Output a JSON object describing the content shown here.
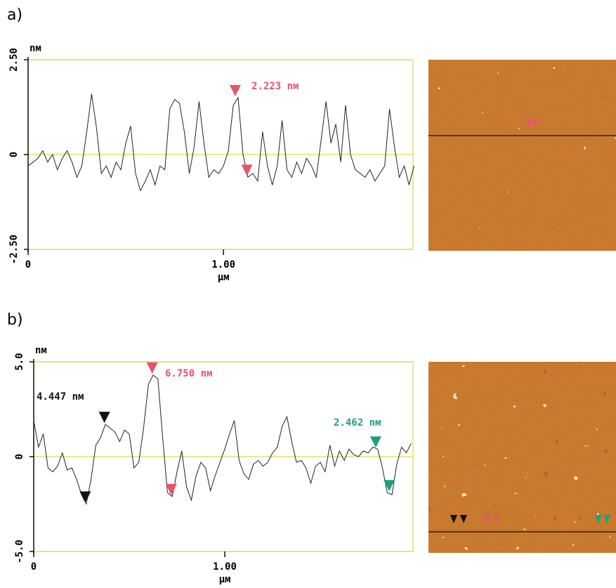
{
  "chart_data": [
    {
      "type": "line",
      "panel": "a)",
      "y_label": "nм",
      "x_label": "μм",
      "color": "#222222",
      "frame_color": "#e6df6a",
      "grid": true,
      "xlim": [
        0,
        1.97
      ],
      "xticks": [
        0,
        {
          "value": 1,
          "label": "1.00"
        }
      ],
      "ylim": [
        -2.5,
        2.5
      ],
      "yticks": [
        {
          "value": 2.5,
          "label": "2.50"
        },
        0,
        {
          "value": -2.5,
          "label": "-2.50"
        }
      ],
      "x": [
        0,
        0.025,
        0.05,
        0.075,
        0.1,
        0.125,
        0.15,
        0.175,
        0.2,
        0.225,
        0.25,
        0.275,
        0.3,
        0.325,
        0.35,
        0.375,
        0.4,
        0.425,
        0.45,
        0.475,
        0.5,
        0.525,
        0.55,
        0.575,
        0.6,
        0.625,
        0.65,
        0.675,
        0.7,
        0.725,
        0.75,
        0.775,
        0.8,
        0.825,
        0.85,
        0.875,
        0.9,
        0.925,
        0.95,
        0.975,
        1.0,
        1.025,
        1.05,
        1.075,
        1.1,
        1.125,
        1.15,
        1.175,
        1.2,
        1.225,
        1.25,
        1.275,
        1.3,
        1.325,
        1.35,
        1.375,
        1.4,
        1.425,
        1.45,
        1.475,
        1.5,
        1.525,
        1.55,
        1.575,
        1.6,
        1.625,
        1.65,
        1.675,
        1.7,
        1.725,
        1.75,
        1.775,
        1.8,
        1.825,
        1.85,
        1.875,
        1.9,
        1.925,
        1.95,
        1.975
      ],
      "values": [
        -0.3,
        -0.2,
        -0.1,
        0.1,
        -0.2,
        0.0,
        -0.4,
        -0.1,
        0.1,
        -0.2,
        -0.6,
        -0.3,
        0.6,
        1.6,
        0.7,
        -0.5,
        -0.3,
        -0.6,
        -0.2,
        -0.4,
        0.3,
        0.75,
        -0.5,
        -0.95,
        -0.7,
        -0.4,
        -0.8,
        -0.3,
        -0.4,
        1.2,
        1.45,
        1.35,
        0.6,
        -0.5,
        0.2,
        1.4,
        0.3,
        -0.6,
        -0.4,
        -0.5,
        -0.3,
        0.1,
        1.3,
        1.5,
        0.0,
        -0.6,
        -0.5,
        -0.7,
        0.6,
        -0.3,
        -0.8,
        -0.3,
        0.9,
        -0.4,
        -0.6,
        -0.2,
        -0.5,
        -0.1,
        -0.3,
        -0.6,
        0.4,
        1.4,
        0.3,
        0.8,
        -0.2,
        1.3,
        0.0,
        -0.4,
        -0.5,
        -0.6,
        -0.4,
        -0.7,
        -0.5,
        -0.3,
        1.2,
        0.2,
        -0.6,
        -0.3,
        -0.8,
        -0.3
      ],
      "markers": [
        {
          "x": 1.06,
          "y": 1.5,
          "color": "#e8546a"
        },
        {
          "x": 1.12,
          "y": -0.6,
          "color": "#e8546a"
        }
      ],
      "annotations": [
        {
          "text": "2.223 nм",
          "color": "#e8546a"
        }
      ]
    },
    {
      "type": "line",
      "panel": "b)",
      "y_label": "nм",
      "x_label": "μм",
      "color": "#222222",
      "frame_color": "#e6df6a",
      "grid": true,
      "xlim": [
        0,
        1.985
      ],
      "xticks": [
        0,
        {
          "value": 1,
          "label": "1.00"
        }
      ],
      "ylim": [
        -5,
        5
      ],
      "yticks": [
        {
          "value": 5,
          "label": "5.0"
        },
        0,
        {
          "value": -5,
          "label": "-5.0"
        }
      ],
      "x": [
        0,
        0.025,
        0.05,
        0.075,
        0.1,
        0.125,
        0.15,
        0.175,
        0.2,
        0.225,
        0.25,
        0.275,
        0.3,
        0.325,
        0.35,
        0.375,
        0.4,
        0.425,
        0.45,
        0.475,
        0.5,
        0.525,
        0.55,
        0.575,
        0.6,
        0.625,
        0.65,
        0.675,
        0.7,
        0.725,
        0.75,
        0.775,
        0.8,
        0.825,
        0.85,
        0.875,
        0.9,
        0.925,
        0.95,
        0.975,
        1.0,
        1.025,
        1.05,
        1.075,
        1.1,
        1.125,
        1.15,
        1.175,
        1.2,
        1.225,
        1.25,
        1.275,
        1.3,
        1.325,
        1.35,
        1.375,
        1.4,
        1.425,
        1.45,
        1.475,
        1.5,
        1.525,
        1.55,
        1.575,
        1.6,
        1.625,
        1.65,
        1.675,
        1.7,
        1.725,
        1.75,
        1.775,
        1.8,
        1.825,
        1.85,
        1.875,
        1.9,
        1.925,
        1.95,
        1.975
      ],
      "values": [
        1.9,
        0.5,
        1.2,
        -0.6,
        -0.8,
        -0.5,
        0.2,
        -0.7,
        -0.6,
        -1.2,
        -2.0,
        -2.5,
        -1.2,
        0.6,
        1.0,
        1.7,
        1.5,
        1.3,
        0.8,
        1.4,
        1.2,
        -0.6,
        -0.3,
        1.5,
        3.8,
        4.3,
        4.1,
        1.0,
        -1.9,
        -2.1,
        -0.8,
        0.3,
        -1.6,
        -2.3,
        -1.0,
        -0.3,
        -0.6,
        -1.8,
        -1.0,
        -0.3,
        0.4,
        1.2,
        1.9,
        -0.2,
        -0.9,
        -1.2,
        -0.4,
        -0.2,
        -0.5,
        -0.3,
        0.2,
        0.5,
        1.6,
        2.1,
        0.8,
        -0.3,
        -0.2,
        -0.6,
        -1.4,
        -0.5,
        -0.3,
        -0.8,
        0.6,
        -0.5,
        0.3,
        -0.2,
        0.4,
        0.1,
        0.0,
        0.3,
        0.2,
        0.5,
        0.4,
        -0.6,
        -1.9,
        -2.0,
        -0.4,
        0.5,
        0.2,
        0.7
      ],
      "markers": [
        {
          "x": 0.27,
          "y": -2.5,
          "color": "#111111"
        },
        {
          "x": 0.37,
          "y": 1.7,
          "color": "#111111"
        },
        {
          "x": 0.62,
          "y": 4.3,
          "color": "#e8546a"
        },
        {
          "x": 0.72,
          "y": -2.1,
          "color": "#e8546a"
        },
        {
          "x": 1.79,
          "y": 0.4,
          "color": "#1aa37a"
        },
        {
          "x": 1.86,
          "y": -1.9,
          "color": "#1aa37a"
        }
      ],
      "annotations": [
        {
          "text": "4.447 nм",
          "color": "#111111"
        },
        {
          "text": "6.750 nм",
          "color": "#e8546a"
        },
        {
          "text": "2.462 nм",
          "color": "#1aa37a"
        }
      ]
    }
  ]
}
